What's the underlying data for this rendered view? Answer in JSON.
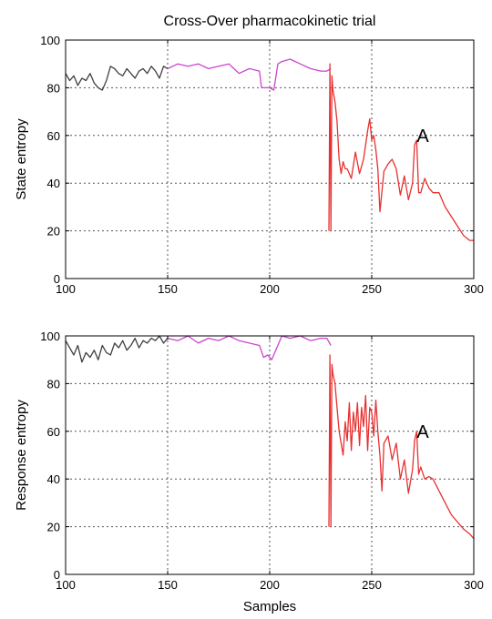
{
  "chart_data": [
    {
      "type": "line",
      "title": "Cross-Over pharmacokinetic trial",
      "xlabel": "",
      "ylabel": "State entropy",
      "xlim": [
        100,
        300
      ],
      "ylim": [
        0,
        100
      ],
      "xticks": [
        100,
        150,
        200,
        250,
        300
      ],
      "yticks": [
        0,
        20,
        40,
        60,
        80,
        100
      ],
      "grid": true,
      "annotations": [
        {
          "text": "A",
          "x": 275,
          "y": 60
        }
      ],
      "series": [
        {
          "color": "#404040",
          "x": [
            100,
            102,
            104,
            106,
            108,
            110,
            112,
            114,
            116,
            118,
            120,
            122,
            124,
            126,
            128,
            130,
            132,
            134,
            136,
            138,
            140,
            142,
            144,
            146,
            148,
            150
          ],
          "y": [
            86,
            83,
            85,
            81,
            84,
            83,
            86,
            82,
            80,
            79,
            83,
            89,
            88,
            86,
            85,
            88,
            86,
            84,
            87,
            88,
            86,
            89,
            87,
            84,
            89,
            88
          ]
        },
        {
          "color": "#cc44cc",
          "x": [
            150,
            155,
            160,
            165,
            170,
            175,
            180,
            185,
            190,
            195,
            196,
            198,
            200,
            202,
            204,
            206,
            210,
            215,
            220,
            225,
            228,
            230
          ],
          "y": [
            88,
            90,
            89,
            90,
            88,
            89,
            90,
            86,
            88,
            87,
            80,
            80,
            80,
            79,
            90,
            91,
            92,
            90,
            88,
            87,
            87,
            88
          ]
        },
        {
          "color": "#e83030",
          "x": [
            229,
            229.5,
            230,
            230.5,
            231,
            232,
            233,
            234,
            235,
            236,
            237,
            238,
            240,
            242,
            244,
            246,
            248,
            249,
            250,
            251,
            252,
            253,
            254,
            256,
            258,
            260,
            262,
            264,
            266,
            268,
            270,
            271,
            272,
            273,
            274,
            276,
            278,
            280,
            283,
            286,
            289,
            292,
            295,
            298,
            300
          ],
          "y": [
            20,
            90,
            20,
            85,
            79,
            74,
            66,
            50,
            44,
            49,
            46,
            46,
            42,
            53,
            44,
            50,
            62,
            67,
            58,
            60,
            54,
            46,
            28,
            45,
            48,
            50,
            46,
            35,
            43,
            33,
            40,
            56,
            58,
            36,
            36,
            42,
            38,
            36,
            36,
            30,
            26,
            22,
            18,
            16,
            16
          ]
        }
      ]
    },
    {
      "type": "line",
      "title": "",
      "xlabel": "Samples",
      "ylabel": "Response entropy",
      "xlim": [
        100,
        300
      ],
      "ylim": [
        0,
        100
      ],
      "xticks": [
        100,
        150,
        200,
        250,
        300
      ],
      "yticks": [
        0,
        20,
        40,
        60,
        80,
        100
      ],
      "grid": true,
      "annotations": [
        {
          "text": "A",
          "x": 275,
          "y": 60
        }
      ],
      "series": [
        {
          "color": "#404040",
          "x": [
            100,
            102,
            104,
            106,
            108,
            110,
            112,
            114,
            116,
            118,
            120,
            122,
            124,
            126,
            128,
            130,
            132,
            134,
            136,
            138,
            140,
            142,
            144,
            146,
            148,
            150
          ],
          "y": [
            98,
            95,
            92,
            96,
            89,
            93,
            91,
            94,
            90,
            96,
            93,
            92,
            97,
            95,
            98,
            94,
            96,
            99,
            95,
            98,
            97,
            99,
            98,
            100,
            97,
            99
          ]
        },
        {
          "color": "#cc44cc",
          "x": [
            150,
            155,
            160,
            165,
            170,
            175,
            180,
            185,
            190,
            195,
            197,
            199,
            201,
            203,
            206,
            210,
            215,
            220,
            225,
            228,
            230
          ],
          "y": [
            99,
            98,
            100,
            97,
            99,
            98,
            100,
            98,
            97,
            96,
            91,
            92,
            90,
            94,
            100,
            99,
            100,
            98,
            99,
            99,
            96
          ]
        },
        {
          "color": "#e83030",
          "x": [
            229,
            229.5,
            230,
            230.5,
            231,
            232,
            233,
            234,
            235,
            236,
            237,
            238,
            239,
            240,
            241,
            242,
            243,
            244,
            245,
            246,
            247,
            248,
            249,
            250,
            251,
            252,
            253,
            254,
            255,
            256,
            258,
            260,
            262,
            264,
            266,
            268,
            270,
            271,
            272,
            273,
            274,
            276,
            278,
            280,
            283,
            286,
            289,
            292,
            295,
            298,
            300
          ],
          "y": [
            20,
            92,
            20,
            88,
            84,
            80,
            70,
            60,
            55,
            50,
            64,
            56,
            72,
            52,
            68,
            60,
            72,
            54,
            70,
            62,
            75,
            52,
            70,
            68,
            58,
            73,
            60,
            50,
            35,
            55,
            58,
            48,
            55,
            40,
            48,
            34,
            44,
            56,
            60,
            42,
            45,
            40,
            41,
            40,
            35,
            30,
            25,
            22,
            19,
            17,
            15
          ]
        }
      ]
    }
  ]
}
